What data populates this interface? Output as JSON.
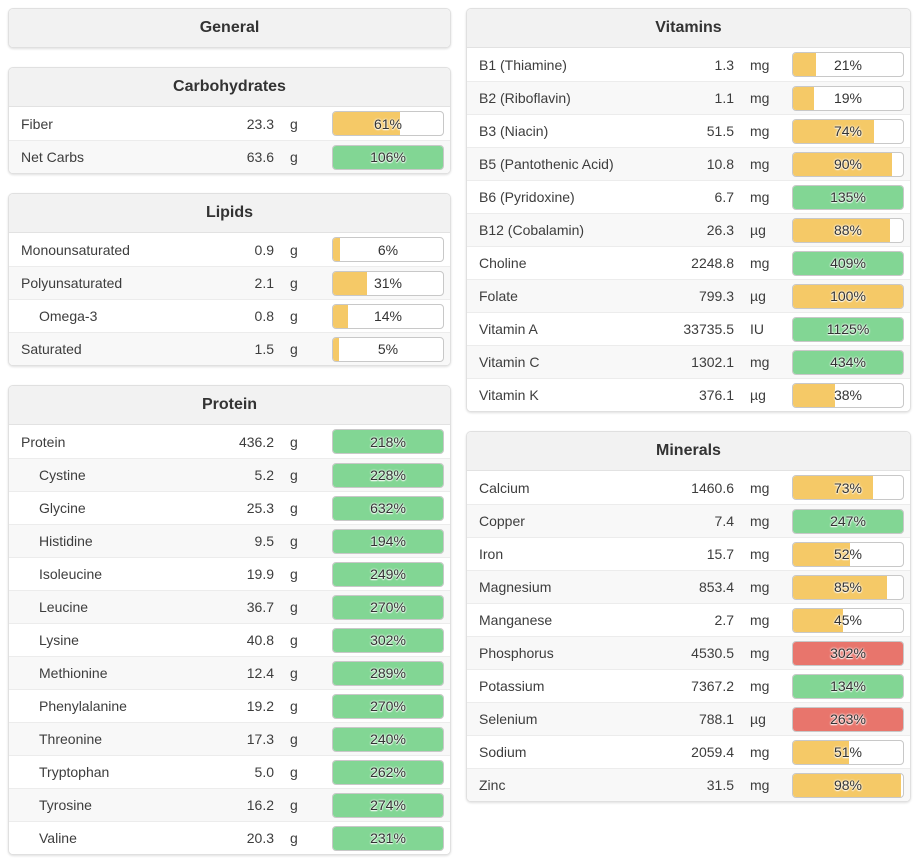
{
  "colors": {
    "yellow": "#f5c967",
    "green": "#82d694",
    "red": "#e8756c"
  },
  "columns": [
    {
      "side": "left",
      "panels": [
        {
          "title": "General",
          "rows": []
        },
        {
          "title": "Carbohydrates",
          "rows": [
            {
              "label": "Fiber",
              "value": "23.3",
              "unit": "g",
              "percent": 61,
              "percent_label": "61%",
              "color": "yellow",
              "indent": 0
            },
            {
              "label": "Net Carbs",
              "value": "63.6",
              "unit": "g",
              "percent": 106,
              "percent_label": "106%",
              "color": "green",
              "indent": 0
            }
          ]
        },
        {
          "title": "Lipids",
          "rows": [
            {
              "label": "Monounsaturated",
              "value": "0.9",
              "unit": "g",
              "percent": 6,
              "percent_label": "6%",
              "color": "yellow",
              "indent": 0
            },
            {
              "label": "Polyunsaturated",
              "value": "2.1",
              "unit": "g",
              "percent": 31,
              "percent_label": "31%",
              "color": "yellow",
              "indent": 0
            },
            {
              "label": "Omega-3",
              "value": "0.8",
              "unit": "g",
              "percent": 14,
              "percent_label": "14%",
              "color": "yellow",
              "indent": 1
            },
            {
              "label": "Saturated",
              "value": "1.5",
              "unit": "g",
              "percent": 5,
              "percent_label": "5%",
              "color": "yellow",
              "indent": 0
            }
          ]
        },
        {
          "title": "Protein",
          "rows": [
            {
              "label": "Protein",
              "value": "436.2",
              "unit": "g",
              "percent": 218,
              "percent_label": "218%",
              "color": "green",
              "indent": 0
            },
            {
              "label": "Cystine",
              "value": "5.2",
              "unit": "g",
              "percent": 228,
              "percent_label": "228%",
              "color": "green",
              "indent": 1
            },
            {
              "label": "Glycine",
              "value": "25.3",
              "unit": "g",
              "percent": 632,
              "percent_label": "632%",
              "color": "green",
              "indent": 1
            },
            {
              "label": "Histidine",
              "value": "9.5",
              "unit": "g",
              "percent": 194,
              "percent_label": "194%",
              "color": "green",
              "indent": 1
            },
            {
              "label": "Isoleucine",
              "value": "19.9",
              "unit": "g",
              "percent": 249,
              "percent_label": "249%",
              "color": "green",
              "indent": 1
            },
            {
              "label": "Leucine",
              "value": "36.7",
              "unit": "g",
              "percent": 270,
              "percent_label": "270%",
              "color": "green",
              "indent": 1
            },
            {
              "label": "Lysine",
              "value": "40.8",
              "unit": "g",
              "percent": 302,
              "percent_label": "302%",
              "color": "green",
              "indent": 1
            },
            {
              "label": "Methionine",
              "value": "12.4",
              "unit": "g",
              "percent": 289,
              "percent_label": "289%",
              "color": "green",
              "indent": 1
            },
            {
              "label": "Phenylalanine",
              "value": "19.2",
              "unit": "g",
              "percent": 270,
              "percent_label": "270%",
              "color": "green",
              "indent": 1
            },
            {
              "label": "Threonine",
              "value": "17.3",
              "unit": "g",
              "percent": 240,
              "percent_label": "240%",
              "color": "green",
              "indent": 1
            },
            {
              "label": "Tryptophan",
              "value": "5.0",
              "unit": "g",
              "percent": 262,
              "percent_label": "262%",
              "color": "green",
              "indent": 1
            },
            {
              "label": "Tyrosine",
              "value": "16.2",
              "unit": "g",
              "percent": 274,
              "percent_label": "274%",
              "color": "green",
              "indent": 1
            },
            {
              "label": "Valine",
              "value": "20.3",
              "unit": "g",
              "percent": 231,
              "percent_label": "231%",
              "color": "green",
              "indent": 1
            }
          ]
        }
      ]
    },
    {
      "side": "right",
      "panels": [
        {
          "title": "Vitamins",
          "rows": [
            {
              "label": "B1 (Thiamine)",
              "value": "1.3",
              "unit": "mg",
              "percent": 21,
              "percent_label": "21%",
              "color": "yellow",
              "indent": 0
            },
            {
              "label": "B2 (Riboflavin)",
              "value": "1.1",
              "unit": "mg",
              "percent": 19,
              "percent_label": "19%",
              "color": "yellow",
              "indent": 0
            },
            {
              "label": "B3 (Niacin)",
              "value": "51.5",
              "unit": "mg",
              "percent": 74,
              "percent_label": "74%",
              "color": "yellow",
              "indent": 0
            },
            {
              "label": "B5 (Pantothenic Acid)",
              "value": "10.8",
              "unit": "mg",
              "percent": 90,
              "percent_label": "90%",
              "color": "yellow",
              "indent": 0
            },
            {
              "label": "B6 (Pyridoxine)",
              "value": "6.7",
              "unit": "mg",
              "percent": 135,
              "percent_label": "135%",
              "color": "green",
              "indent": 0
            },
            {
              "label": "B12 (Cobalamin)",
              "value": "26.3",
              "unit": "µg",
              "percent": 88,
              "percent_label": "88%",
              "color": "yellow",
              "indent": 0
            },
            {
              "label": "Choline",
              "value": "2248.8",
              "unit": "mg",
              "percent": 409,
              "percent_label": "409%",
              "color": "green",
              "indent": 0
            },
            {
              "label": "Folate",
              "value": "799.3",
              "unit": "µg",
              "percent": 100,
              "percent_label": "100%",
              "color": "yellow",
              "indent": 0
            },
            {
              "label": "Vitamin A",
              "value": "33735.5",
              "unit": "IU",
              "percent": 1125,
              "percent_label": "1125%",
              "color": "green",
              "indent": 0
            },
            {
              "label": "Vitamin C",
              "value": "1302.1",
              "unit": "mg",
              "percent": 434,
              "percent_label": "434%",
              "color": "green",
              "indent": 0
            },
            {
              "label": "Vitamin K",
              "value": "376.1",
              "unit": "µg",
              "percent": 38,
              "percent_label": "38%",
              "color": "yellow",
              "indent": 0
            }
          ]
        },
        {
          "title": "Minerals",
          "rows": [
            {
              "label": "Calcium",
              "value": "1460.6",
              "unit": "mg",
              "percent": 73,
              "percent_label": "73%",
              "color": "yellow",
              "indent": 0
            },
            {
              "label": "Copper",
              "value": "7.4",
              "unit": "mg",
              "percent": 247,
              "percent_label": "247%",
              "color": "green",
              "indent": 0
            },
            {
              "label": "Iron",
              "value": "15.7",
              "unit": "mg",
              "percent": 52,
              "percent_label": "52%",
              "color": "yellow",
              "indent": 0
            },
            {
              "label": "Magnesium",
              "value": "853.4",
              "unit": "mg",
              "percent": 85,
              "percent_label": "85%",
              "color": "yellow",
              "indent": 0
            },
            {
              "label": "Manganese",
              "value": "2.7",
              "unit": "mg",
              "percent": 45,
              "percent_label": "45%",
              "color": "yellow",
              "indent": 0
            },
            {
              "label": "Phosphorus",
              "value": "4530.5",
              "unit": "mg",
              "percent": 302,
              "percent_label": "302%",
              "color": "red",
              "indent": 0
            },
            {
              "label": "Potassium",
              "value": "7367.2",
              "unit": "mg",
              "percent": 134,
              "percent_label": "134%",
              "color": "green",
              "indent": 0
            },
            {
              "label": "Selenium",
              "value": "788.1",
              "unit": "µg",
              "percent": 263,
              "percent_label": "263%",
              "color": "red",
              "indent": 0
            },
            {
              "label": "Sodium",
              "value": "2059.4",
              "unit": "mg",
              "percent": 51,
              "percent_label": "51%",
              "color": "yellow",
              "indent": 0
            },
            {
              "label": "Zinc",
              "value": "31.5",
              "unit": "mg",
              "percent": 98,
              "percent_label": "98%",
              "color": "yellow",
              "indent": 0
            }
          ]
        }
      ]
    }
  ]
}
